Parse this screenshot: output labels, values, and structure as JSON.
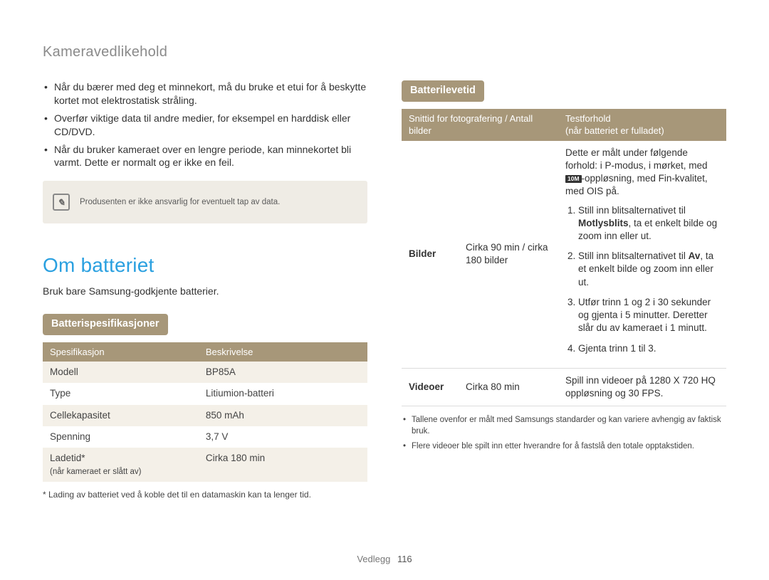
{
  "breadcrumb": "Kameravedlikehold",
  "left": {
    "bullets": [
      "Når du bærer med deg et minnekort, må du bruke et etui for å beskytte kortet mot elektrostatisk stråling.",
      "Overfør viktige data til andre medier, for eksempel en harddisk eller CD/DVD.",
      "Når du bruker kameraet over en lengre periode, kan minnekortet bli varmt. Dette er normalt og er ikke en feil."
    ],
    "note": "Produsenten er ikke ansvarlig for eventuelt tap av data.",
    "section_title": "Om batteriet",
    "section_sub": "Bruk bare Samsung-godkjente batterier.",
    "spec_pill": "Batterispesifikasjoner",
    "spec_table": {
      "headers": [
        "Spesifikasjon",
        "Beskrivelse"
      ],
      "rows": [
        [
          "Modell",
          "BP85A"
        ],
        [
          "Type",
          "Litiumion-batteri"
        ],
        [
          "Cellekapasitet",
          "850 mAh"
        ],
        [
          "Spenning",
          "3,7 V"
        ]
      ],
      "last_row": {
        "label": "Ladetid*",
        "sub": "(når kameraet er slått av)",
        "value": "Cirka 180 min"
      }
    },
    "footnote": "* Lading av batteriet ved å koble det til en datamaskin kan ta lenger tid."
  },
  "right": {
    "life_pill": "Batterilevetid",
    "life_table": {
      "headers": {
        "col1": "Snittid for fotografering / Antall bilder",
        "col2_top": "Testforhold",
        "col2_sub": "(når batteriet er fulladet)"
      },
      "row_bilder": {
        "label": "Bilder",
        "time": "Cirka 90 min / cirka 180 bilder",
        "cond_top_pre": "Dette er målt under følgende forhold: i P-modus, i mørket, med ",
        "cond_top_chip": "10M",
        "cond_top_post": "-oppløsning, med Fin-kvalitet, med OIS på.",
        "steps": [
          {
            "pre": "Still inn blitsalternativet til ",
            "bold": "Motlysblits",
            "post": ", ta et enkelt bilde og zoom inn eller ut."
          },
          {
            "pre": "Still inn blitsalternativet til ",
            "bold": "Av",
            "post": ", ta et enkelt bilde og zoom inn eller ut."
          },
          {
            "pre": "Utfør trinn 1 og 2 i 30 sekunder og gjenta i 5 minutter. Deretter slår du av kameraet i 1 minutt.",
            "bold": "",
            "post": ""
          },
          {
            "pre": "Gjenta trinn 1 til 3.",
            "bold": "",
            "post": ""
          }
        ]
      },
      "row_video": {
        "label": "Videoer",
        "time": "Cirka 80 min",
        "cond": "Spill inn videoer på 1280 X 720 HQ oppløsning og 30 FPS."
      }
    },
    "small_notes": [
      "Tallene ovenfor er målt med Samsungs standarder og kan variere avhengig av faktisk bruk.",
      "Flere videoer ble spilt inn etter hverandre for å fastslå den totale opptakstiden."
    ]
  },
  "footer": {
    "section": "Vedlegg",
    "page": "116"
  },
  "colors": {
    "accent_blue": "#2aa0e0",
    "pill_bg": "#a79779",
    "note_bg": "#efece5",
    "row_alt_bg": "#f4f0e8",
    "text": "#333333",
    "muted": "#8a8a8a"
  }
}
